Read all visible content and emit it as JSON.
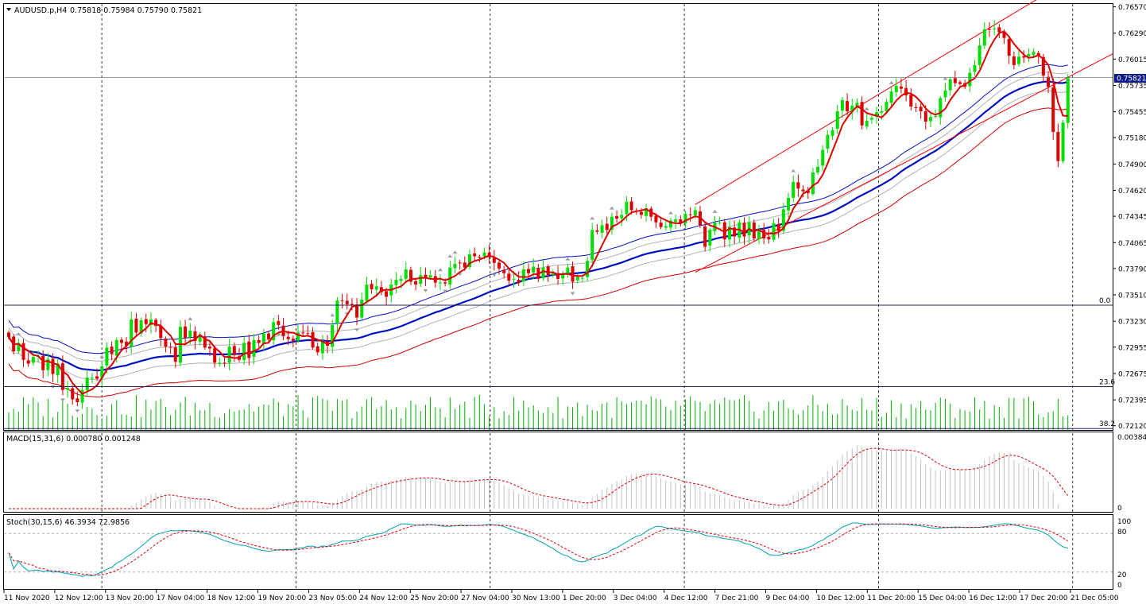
{
  "main_panel": {
    "symbol_label": "AUDUSD.p,H4",
    "ohlc_label": "0.75818 0.75984 0.75790 0.75821",
    "current_price_label": "0.75821",
    "fib_levels": [
      {
        "label": "0.0",
        "price": 0.734
      },
      {
        "label": "23.6",
        "price": 0.72535
      },
      {
        "label": "38.2",
        "price": 0.7209
      }
    ]
  },
  "macd_panel": {
    "label": "MACD(15,31,6) 0.000780 0.001248",
    "ticks": [
      "0.00384",
      "0"
    ]
  },
  "stoch_panel": {
    "label": "Stoch(30,15,6) 46.3934 72.9856",
    "ticks": [
      "100",
      "80",
      "20",
      "0"
    ]
  },
  "chart_data": {
    "type": "candlestick",
    "instrument": "AUDUSD.p",
    "timeframe": "H4",
    "y_ticks": [
      "0.76570",
      "0.76290",
      "0.76015",
      "0.75735",
      "0.75455",
      "0.75180",
      "0.74900",
      "0.74620",
      "0.74345",
      "0.74065",
      "0.73790",
      "0.73510",
      "0.73230",
      "0.72955",
      "0.72675",
      "0.72395",
      "0.72120"
    ],
    "ylim": [
      0.72075,
      0.766
    ],
    "x_ticks": [
      "11 Nov 2020",
      "12 Nov 12:00",
      "13 Nov 20:00",
      "17 Nov 04:00",
      "18 Nov 12:00",
      "19 Nov 20:00",
      "23 Nov 05:00",
      "24 Nov 12:00",
      "25 Nov 20:00",
      "27 Nov 04:00",
      "30 Nov 13:00",
      "1 Dec 20:00",
      "3 Dec 04:00",
      "4 Dec 12:00",
      "7 Dec 21:00",
      "9 Dec 04:00",
      "10 Dec 12:00",
      "11 Dec 20:00",
      "15 Dec 04:00",
      "16 Dec 12:00",
      "17 Dec 20:00",
      "21 Dec 05:00"
    ],
    "closes": [
      0.7306,
      0.7291,
      0.73,
      0.7282,
      0.7278,
      0.7285,
      0.7286,
      0.7271,
      0.7283,
      0.7267,
      0.7278,
      0.725,
      0.7252,
      0.724,
      0.7237,
      0.725,
      0.7263,
      0.7263,
      0.7262,
      0.7275,
      0.7295,
      0.7288,
      0.7303,
      0.73,
      0.7297,
      0.7325,
      0.7311,
      0.7324,
      0.732,
      0.7325,
      0.7318,
      0.7305,
      0.7296,
      0.7295,
      0.728,
      0.7317,
      0.7305,
      0.7313,
      0.7302,
      0.7306,
      0.7295,
      0.7294,
      0.7279,
      0.7279,
      0.7278,
      0.7296,
      0.7287,
      0.7282,
      0.73,
      0.7284,
      0.7303,
      0.73,
      0.731,
      0.7304,
      0.7322,
      0.7319,
      0.7307,
      0.7304,
      0.7302,
      0.7311,
      0.7311,
      0.731,
      0.7295,
      0.729,
      0.7301,
      0.7297,
      0.7319,
      0.7345,
      0.7345,
      0.7341,
      0.7341,
      0.7327,
      0.7346,
      0.7362,
      0.7357,
      0.736,
      0.7354,
      0.7349,
      0.7362,
      0.7367,
      0.7368,
      0.7378,
      0.7365,
      0.7362,
      0.7372,
      0.7369,
      0.7372,
      0.7364,
      0.7364,
      0.7363,
      0.738,
      0.7384,
      0.7385,
      0.738,
      0.7394,
      0.7392,
      0.7391,
      0.7396,
      0.7391,
      0.7385,
      0.7379,
      0.7374,
      0.7366,
      0.7368,
      0.7364,
      0.7378,
      0.7374,
      0.7381,
      0.7368,
      0.738,
      0.7372,
      0.7374,
      0.7368,
      0.7372,
      0.738,
      0.7365,
      0.737,
      0.7369,
      0.7387,
      0.742,
      0.7418,
      0.7425,
      0.742,
      0.7434,
      0.7432,
      0.7436,
      0.745,
      0.7441,
      0.744,
      0.7436,
      0.7443,
      0.7434,
      0.7428,
      0.7423,
      0.7424,
      0.743,
      0.7431,
      0.7427,
      0.7437,
      0.7436,
      0.7441,
      0.7425,
      0.7402,
      0.742,
      0.7428,
      0.7428,
      0.741,
      0.7423,
      0.7413,
      0.7428,
      0.7413,
      0.7428,
      0.7411,
      0.7421,
      0.7411,
      0.741,
      0.7427,
      0.7419,
      0.7442,
      0.7454,
      0.7471,
      0.7464,
      0.7461,
      0.7459,
      0.7481,
      0.7487,
      0.7505,
      0.7521,
      0.7526,
      0.7546,
      0.7558,
      0.7546,
      0.7552,
      0.7555,
      0.7531,
      0.7536,
      0.7539,
      0.7545,
      0.7546,
      0.7556,
      0.7567,
      0.7573,
      0.757,
      0.7563,
      0.7551,
      0.755,
      0.7546,
      0.7535,
      0.754,
      0.7541,
      0.756,
      0.7568,
      0.758,
      0.7576,
      0.7575,
      0.7572,
      0.7587,
      0.7595,
      0.7616,
      0.7633,
      0.7633,
      0.7634,
      0.763,
      0.7624,
      0.7605,
      0.7595,
      0.7604,
      0.7603,
      0.7607,
      0.7609,
      0.7605,
      0.7584,
      0.7572,
      0.7524,
      0.7493,
      0.7534,
      0.7582
    ],
    "sma_ma": {
      "color": "#dd0000",
      "period": 5
    },
    "sma_mid": {
      "color": "#0010c0",
      "period": 40
    },
    "bollinger": {
      "color": "#0010c0",
      "band": 0.0018
    },
    "envelope_lower": {
      "color": "#cc0000"
    },
    "trend_channel": {
      "color": "#ee0000"
    },
    "macd_signal_color": "#dd0000",
    "stoch_main_color": "#00a0b0",
    "stoch_signal_color": "#dd0000",
    "bull_color": "#00dd00",
    "bear_color": "#dd0000"
  }
}
